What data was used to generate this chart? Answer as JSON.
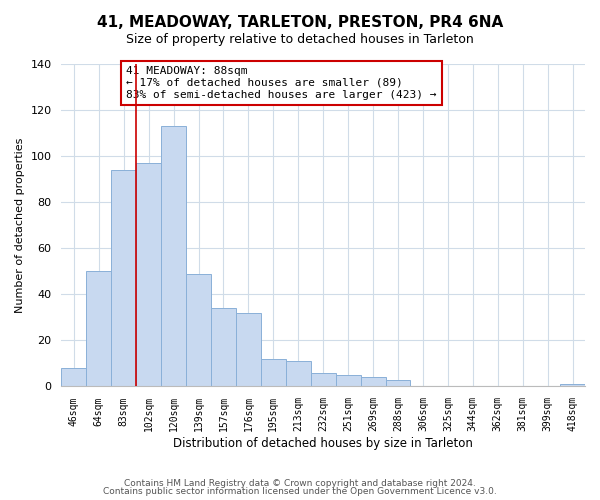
{
  "title": "41, MEADOWAY, TARLETON, PRESTON, PR4 6NA",
  "subtitle": "Size of property relative to detached houses in Tarleton",
  "xlabel": "Distribution of detached houses by size in Tarleton",
  "ylabel": "Number of detached properties",
  "bar_labels": [
    "46sqm",
    "64sqm",
    "83sqm",
    "102sqm",
    "120sqm",
    "139sqm",
    "157sqm",
    "176sqm",
    "195sqm",
    "213sqm",
    "232sqm",
    "251sqm",
    "269sqm",
    "288sqm",
    "306sqm",
    "325sqm",
    "344sqm",
    "362sqm",
    "381sqm",
    "399sqm",
    "418sqm"
  ],
  "bar_values": [
    8,
    50,
    94,
    97,
    113,
    49,
    34,
    32,
    12,
    11,
    6,
    5,
    4,
    3,
    0,
    0,
    0,
    0,
    0,
    0,
    1
  ],
  "bar_color": "#c8d9f0",
  "bar_edge_color": "#8ab0d8",
  "vline_x": 2.5,
  "vline_color": "#cc0000",
  "annotation_text": "41 MEADOWAY: 88sqm\n← 17% of detached houses are smaller (89)\n83% of semi-detached houses are larger (423) →",
  "annotation_box_color": "#ffffff",
  "annotation_box_edge": "#cc0000",
  "ylim": [
    0,
    140
  ],
  "yticks": [
    0,
    20,
    40,
    60,
    80,
    100,
    120,
    140
  ],
  "footer1": "Contains HM Land Registry data © Crown copyright and database right 2024.",
  "footer2": "Contains public sector information licensed under the Open Government Licence v3.0.",
  "grid_color": "#d0dce8",
  "background_color": "#ffffff",
  "title_fontsize": 11,
  "subtitle_fontsize": 9
}
